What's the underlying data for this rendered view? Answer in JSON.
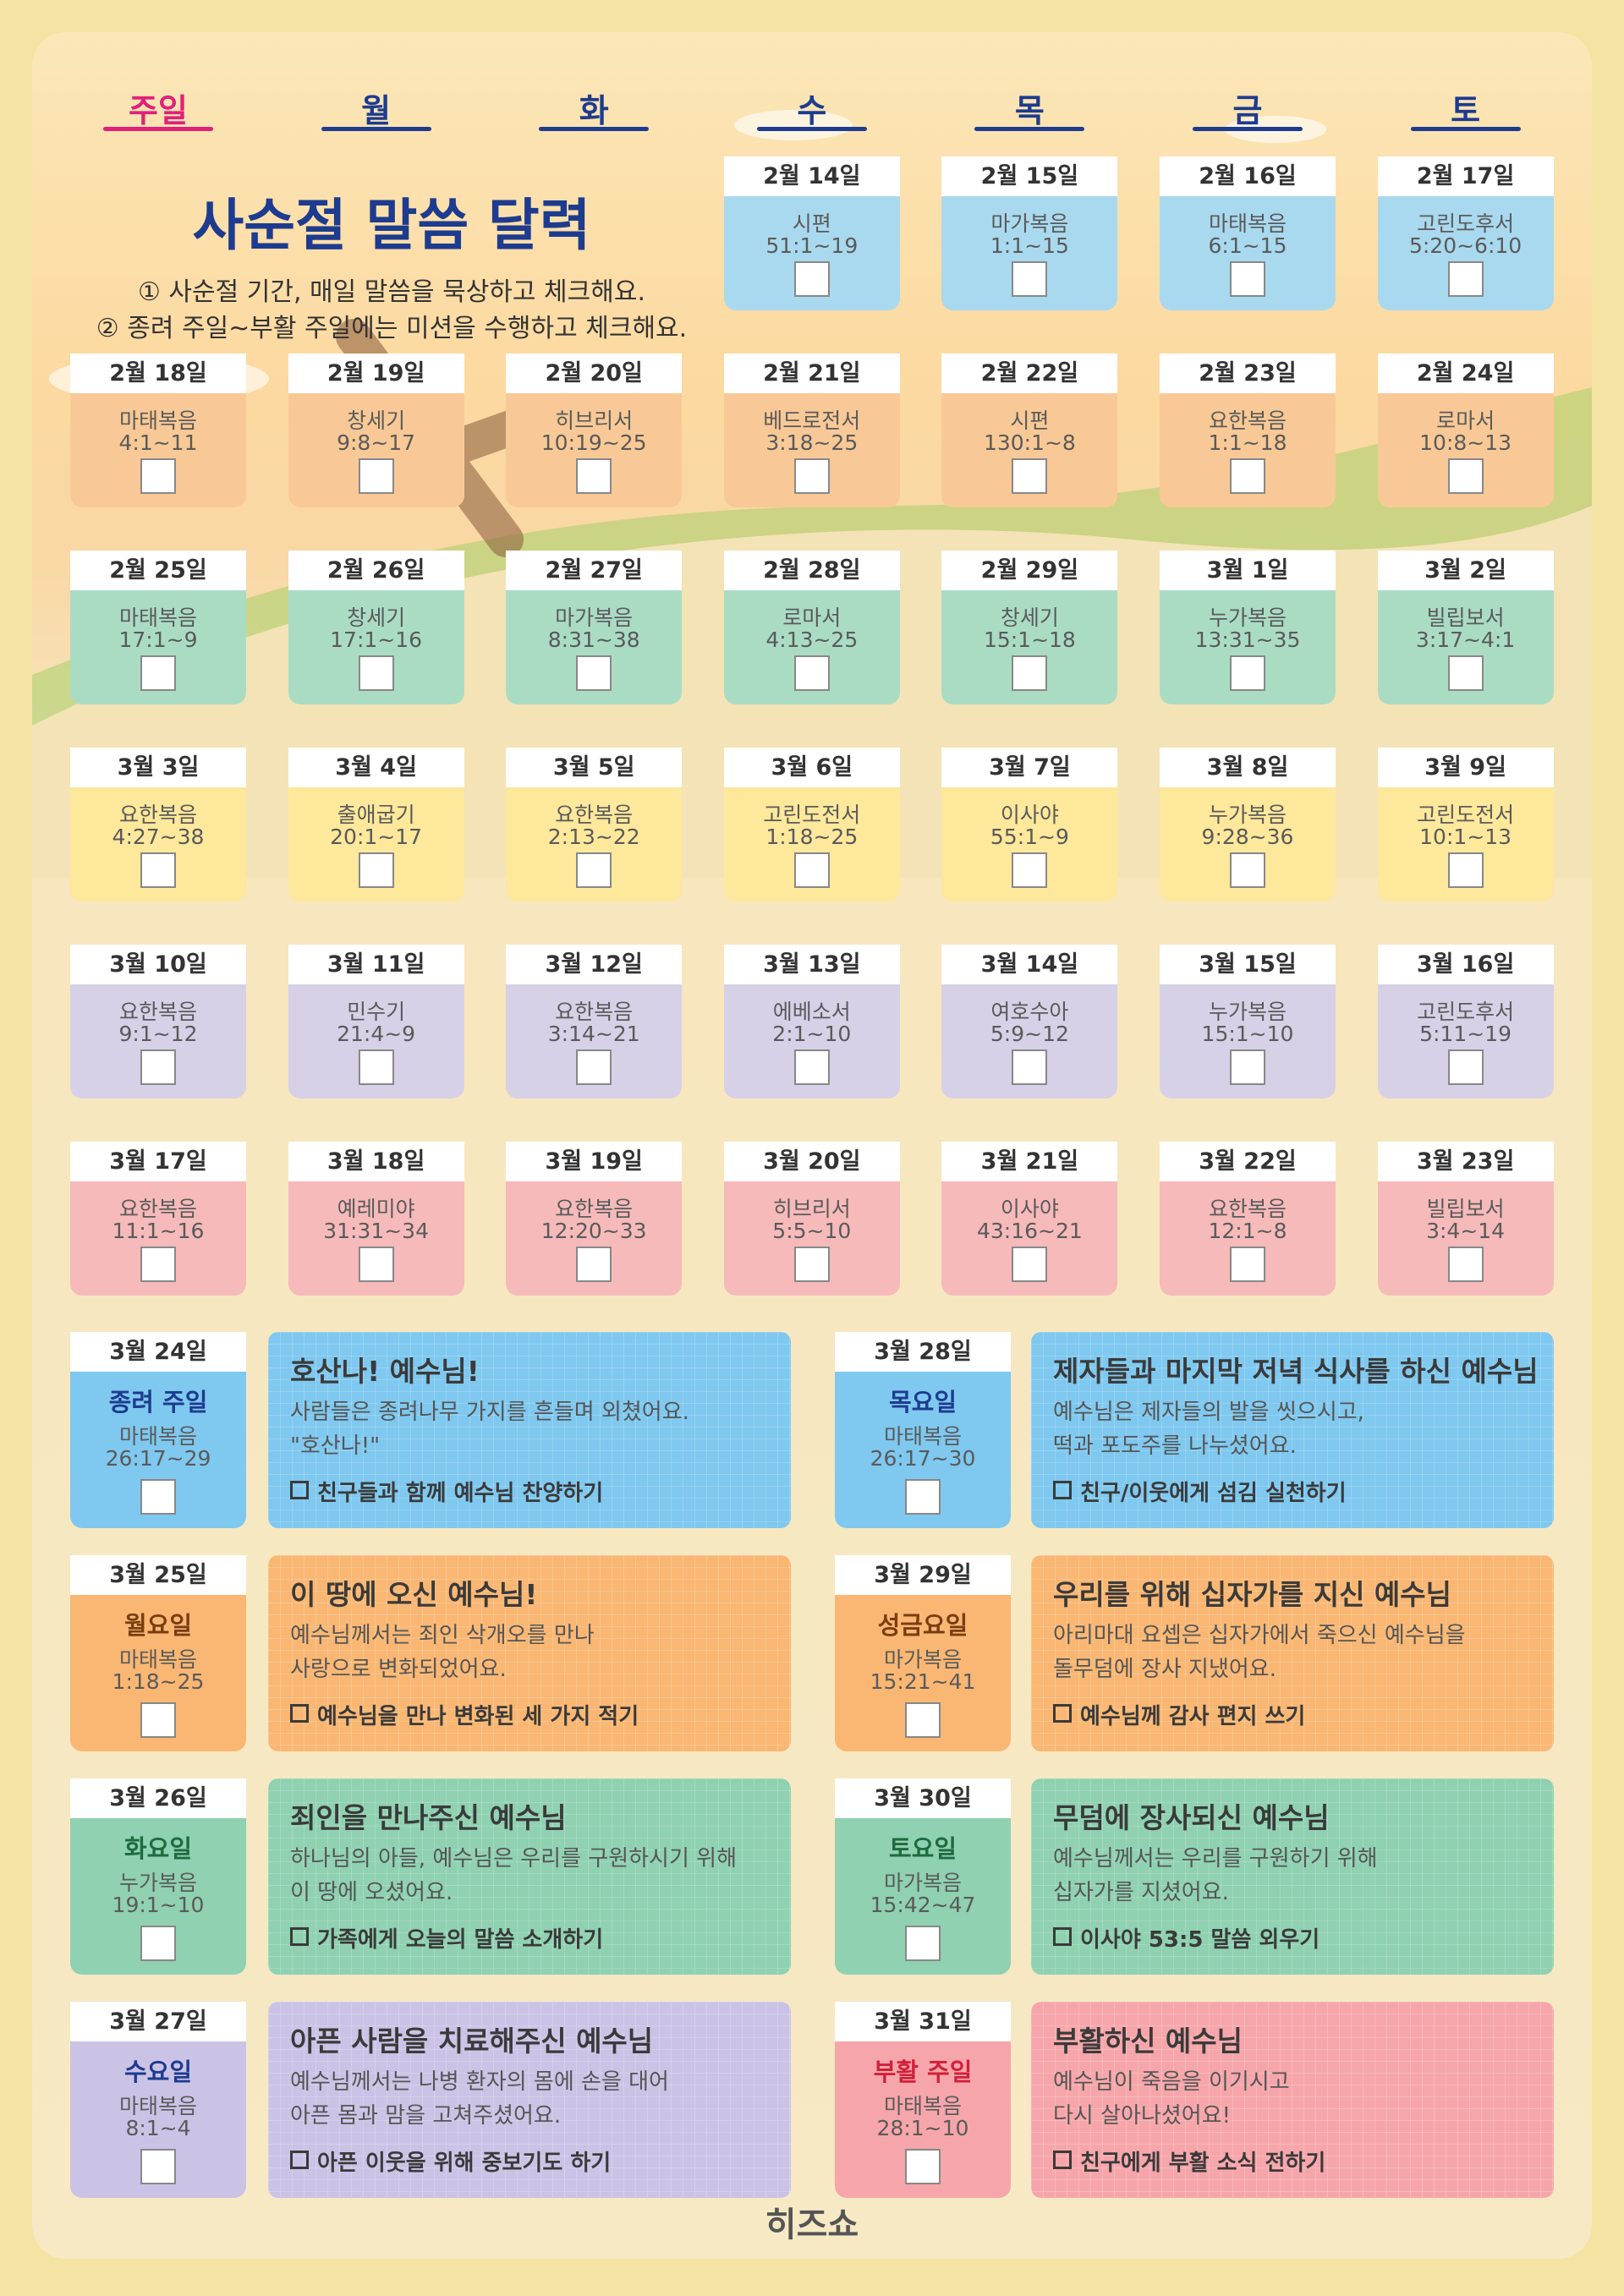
{
  "weekdays": [
    "주일",
    "월",
    "화",
    "수",
    "목",
    "금",
    "토"
  ],
  "title": "사순절 말씀 달력",
  "instructions": [
    "① 사순절 기간, 매일 말씀을 묵상하고 체크해요.",
    "② 종려 주일~부활 주일에는 미션을 수행하고 체크해요."
  ],
  "weeks": [
    {
      "color": "#a9d9ef",
      "days": [
        {
          "date": "2월 14일",
          "book": "시편",
          "verses": "51:1~19"
        },
        {
          "date": "2월 15일",
          "book": "마가복음",
          "verses": "1:1~15"
        },
        {
          "date": "2월 16일",
          "book": "마태복음",
          "verses": "6:1~15"
        },
        {
          "date": "2월 17일",
          "book": "고린도후서",
          "verses": "5:20~6:10"
        }
      ]
    },
    {
      "color": "#f8c996",
      "days": [
        {
          "date": "2월 18일",
          "book": "마태복음",
          "verses": "4:1~11"
        },
        {
          "date": "2월 19일",
          "book": "창세기",
          "verses": "9:8~17"
        },
        {
          "date": "2월 20일",
          "book": "히브리서",
          "verses": "10:19~25"
        },
        {
          "date": "2월 21일",
          "book": "베드로전서",
          "verses": "3:18~25"
        },
        {
          "date": "2월 22일",
          "book": "시편",
          "verses": "130:1~8"
        },
        {
          "date": "2월 23일",
          "book": "요한복음",
          "verses": "1:1~18"
        },
        {
          "date": "2월 24일",
          "book": "로마서",
          "verses": "10:8~13"
        }
      ]
    },
    {
      "color": "#aadcc4",
      "days": [
        {
          "date": "2월 25일",
          "book": "마태복음",
          "verses": "17:1~9"
        },
        {
          "date": "2월 26일",
          "book": "창세기",
          "verses": "17:1~16"
        },
        {
          "date": "2월 27일",
          "book": "마가복음",
          "verses": "8:31~38"
        },
        {
          "date": "2월 28일",
          "book": "로마서",
          "verses": "4:13~25"
        },
        {
          "date": "2월 29일",
          "book": "창세기",
          "verses": "15:1~18"
        },
        {
          "date": "3월 1일",
          "book": "누가복음",
          "verses": "13:31~35"
        },
        {
          "date": "3월 2일",
          "book": "빌립보서",
          "verses": "3:17~4:1"
        }
      ]
    },
    {
      "color": "#fde89b",
      "days": [
        {
          "date": "3월 3일",
          "book": "요한복음",
          "verses": "4:27~38"
        },
        {
          "date": "3월 4일",
          "book": "출애굽기",
          "verses": "20:1~17"
        },
        {
          "date": "3월 5일",
          "book": "요한복음",
          "verses": "2:13~22"
        },
        {
          "date": "3월 6일",
          "book": "고린도전서",
          "verses": "1:18~25"
        },
        {
          "date": "3월 7일",
          "book": "이사야",
          "verses": "55:1~9"
        },
        {
          "date": "3월 8일",
          "book": "누가복음",
          "verses": "9:28~36"
        },
        {
          "date": "3월 9일",
          "book": "고린도전서",
          "verses": "10:1~13"
        }
      ]
    },
    {
      "color": "#d6d1e7",
      "days": [
        {
          "date": "3월 10일",
          "book": "요한복음",
          "verses": "9:1~12"
        },
        {
          "date": "3월 11일",
          "book": "민수기",
          "verses": "21:4~9"
        },
        {
          "date": "3월 12일",
          "book": "요한복음",
          "verses": "3:14~21"
        },
        {
          "date": "3월 13일",
          "book": "에베소서",
          "verses": "2:1~10"
        },
        {
          "date": "3월 14일",
          "book": "여호수아",
          "verses": "5:9~12"
        },
        {
          "date": "3월 15일",
          "book": "누가복음",
          "verses": "15:1~10"
        },
        {
          "date": "3월 16일",
          "book": "고린도후서",
          "verses": "5:11~19"
        }
      ]
    },
    {
      "color": "#f6baba",
      "days": [
        {
          "date": "3월 17일",
          "book": "요한복음",
          "verses": "11:1~16"
        },
        {
          "date": "3월 18일",
          "book": "예레미야",
          "verses": "31:31~34"
        },
        {
          "date": "3월 19일",
          "book": "요한복음",
          "verses": "12:20~33"
        },
        {
          "date": "3월 20일",
          "book": "히브리서",
          "verses": "5:5~10"
        },
        {
          "date": "3월 21일",
          "book": "이사야",
          "verses": "43:16~21"
        },
        {
          "date": "3월 22일",
          "book": "요한복음",
          "verses": "12:1~8"
        },
        {
          "date": "3월 23일",
          "book": "빌립보서",
          "verses": "3:4~14"
        }
      ]
    }
  ],
  "holy_week": [
    {
      "date": "3월 24일",
      "day": "종려 주일",
      "day_color": "#1d3b8f",
      "book": "마태복음",
      "verses": "26:17~29",
      "color": "#7fc8ef",
      "title": "호산나! 예수님!",
      "lines": [
        "사람들은 종려나무 가지를 흔들며 외쳤어요.",
        "\"호산나!\""
      ],
      "mission": "친구들과 함께 예수님 찬양하기"
    },
    {
      "date": "3월 25일",
      "day": "월요일",
      "day_color": "#7a3d12",
      "book": "마태복음",
      "verses": "1:18~25",
      "color": "#f9b773",
      "title": "이 땅에 오신 예수님!",
      "lines": [
        "예수님께서는 죄인 삭개오를 만나",
        "사랑으로 변화되었어요."
      ],
      "mission": "예수님을 만나 변화된 세 가지 적기"
    },
    {
      "date": "3월 26일",
      "day": "화요일",
      "day_color": "#1f6b3f",
      "book": "누가복음",
      "verses": "19:1~10",
      "color": "#8fd1b1",
      "title": "죄인을 만나주신 예수님",
      "lines": [
        "하나님의 아들, 예수님은 우리를 구원하시기 위해",
        "이 땅에 오셨어요."
      ],
      "mission": "가족에게 오늘의 말씀 소개하기"
    },
    {
      "date": "3월 27일",
      "day": "수요일",
      "day_color": "#1d3b8f",
      "book": "마태복음",
      "verses": "8:1~4",
      "color": "#cbc3e6",
      "title": "아픈 사람을 치료해주신 예수님",
      "lines": [
        "예수님께서는 나병 환자의 몸에 손을 대어",
        "아픈 몸과 맘을 고쳐주셨어요."
      ],
      "mission": "아픈 이웃을 위해 중보기도 하기"
    },
    {
      "date": "3월 28일",
      "day": "목요일",
      "day_color": "#1d3b8f",
      "book": "마태복음",
      "verses": "26:17~30",
      "color": "#7fc8ef",
      "title": "제자들과 마지막 저녁 식사를 하신 예수님",
      "lines": [
        "예수님은 제자들의 발을 씻으시고,",
        "떡과 포도주를 나누셨어요."
      ],
      "mission": "친구/이웃에게 섬김 실천하기"
    },
    {
      "date": "3월 29일",
      "day": "성금요일",
      "day_color": "#7a3d12",
      "book": "마가복음",
      "verses": "15:21~41",
      "color": "#f9b773",
      "title": "우리를 위해 십자가를 지신 예수님",
      "lines": [
        "아리마대 요셉은 십자가에서 죽으신 예수님을",
        "돌무덤에 장사 지냈어요."
      ],
      "mission": "예수님께 감사 편지 쓰기"
    },
    {
      "date": "3월 30일",
      "day": "토요일",
      "day_color": "#1f6b3f",
      "book": "마가복음",
      "verses": "15:42~47",
      "color": "#8fd1b1",
      "title": "무덤에 장사되신 예수님",
      "lines": [
        "예수님께서는 우리를 구원하기 위해",
        "십자가를 지셨어요."
      ],
      "mission": "이사야 53:5 말씀 외우기"
    },
    {
      "date": "3월 31일",
      "day": "부활 주일",
      "day_color": "#d11f3a",
      "book": "마태복음",
      "verses": "28:1~10",
      "color": "#f6a6aa",
      "title": "부활하신 예수님",
      "lines": [
        "예수님이 죽음을 이기시고",
        "다시 살아나셨어요!"
      ],
      "mission": "친구에게 부활 소식 전하기"
    }
  ],
  "footer": "히즈쇼"
}
